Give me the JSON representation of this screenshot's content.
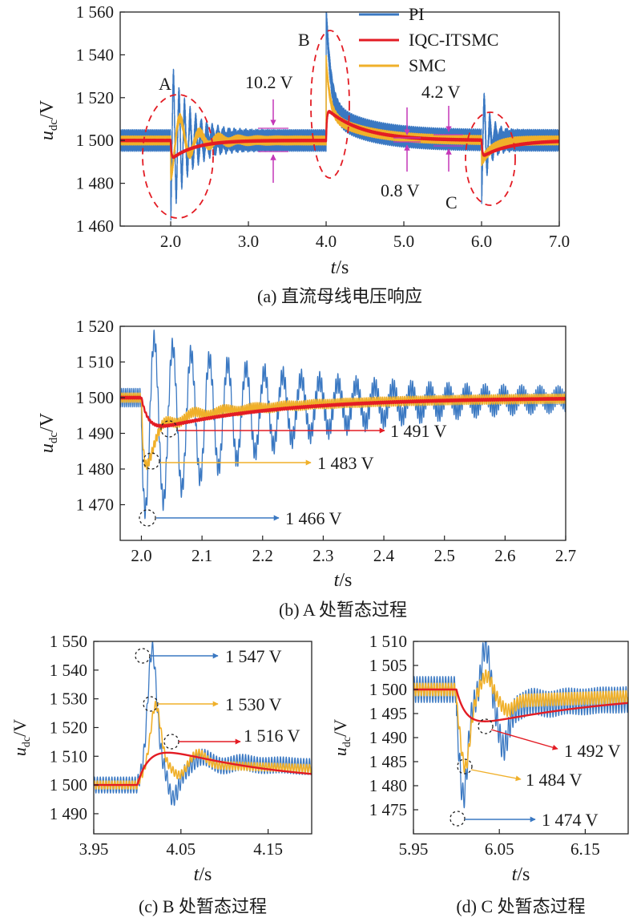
{
  "colors": {
    "PI": "#3a78c2",
    "IQC": "#e31c24",
    "SMC": "#f0b02a",
    "magenta": "#c437b8",
    "circle": "#b00000"
  },
  "chart_data": [
    {
      "id": "a",
      "type": "line",
      "caption": "(a) 直流母线电压响应",
      "xlabel_italic": "t",
      "xlabel_unit": "/s",
      "ylabel_italic": "u",
      "ylabel_sub": "dc",
      "ylabel_unit": "/V",
      "xlim": [
        1.35,
        7.0
      ],
      "ylim": [
        1460,
        1560
      ],
      "xticks": [
        2.0,
        3.0,
        4.0,
        5.0,
        6.0,
        7.0
      ],
      "xtick_labels": [
        "2.0",
        "3.0",
        "4.0",
        "5.0",
        "6.0",
        "7.0"
      ],
      "yticks": [
        1460,
        1480,
        1500,
        1520,
        1540,
        1560
      ],
      "ytick_labels": [
        "1 460",
        "1 480",
        "1 500",
        "1 520",
        "1 540",
        "1 560"
      ],
      "legend": [
        "PI",
        "IQC-ITSMC",
        "SMC"
      ],
      "annotations": {
        "A": "A",
        "B": "B",
        "C": "C",
        "pi_ripple": "10.2 V",
        "iqc_ripple": "0.8 V",
        "smc_ripple": "4.2 V"
      }
    },
    {
      "id": "b",
      "type": "line",
      "caption": "(b) A 处暂态过程",
      "xlabel_italic": "t",
      "xlabel_unit": "/s",
      "ylabel_italic": "u",
      "ylabel_sub": "dc",
      "ylabel_unit": "/V",
      "xlim": [
        1.965,
        2.7
      ],
      "ylim": [
        1460,
        1520
      ],
      "xticks": [
        2.0,
        2.1,
        2.2,
        2.3,
        2.4,
        2.5,
        2.6,
        2.7
      ],
      "xtick_labels": [
        "2.0",
        "2.1",
        "2.2",
        "2.3",
        "2.4",
        "2.5",
        "2.6",
        "2.7"
      ],
      "yticks": [
        1470,
        1480,
        1490,
        1500,
        1510,
        1520
      ],
      "ytick_labels": [
        "1 470",
        "1 480",
        "1 490",
        "1 500",
        "1 510",
        "1 520"
      ],
      "minima": {
        "PI": "1 466 V",
        "SMC": "1 483 V",
        "IQC": "1 491 V"
      }
    },
    {
      "id": "c",
      "type": "line",
      "caption": "(c) B 处暂态过程",
      "xlabel_italic": "t",
      "xlabel_unit": "/s",
      "ylabel_italic": "u",
      "ylabel_sub": "dc",
      "ylabel_unit": "/V",
      "xlim": [
        3.95,
        4.2
      ],
      "ylim": [
        1483,
        1550
      ],
      "xticks": [
        3.95,
        4.05,
        4.15
      ],
      "xtick_labels": [
        "3.95",
        "4.05",
        "4.15"
      ],
      "yticks": [
        1490,
        1500,
        1510,
        1520,
        1530,
        1540,
        1550
      ],
      "ytick_labels": [
        "1 490",
        "1 500",
        "1 510",
        "1 520",
        "1 530",
        "1 540",
        "1 550"
      ],
      "maxima": {
        "PI": "1 547 V",
        "SMC": "1 530 V",
        "IQC": "1 516 V"
      }
    },
    {
      "id": "d",
      "type": "line",
      "caption": "(d) C 处暂态过程",
      "xlabel_italic": "t",
      "xlabel_unit": "/s",
      "ylabel_italic": "u",
      "ylabel_sub": "dc",
      "ylabel_unit": "/V",
      "xlim": [
        5.95,
        6.2
      ],
      "ylim": [
        1470,
        1510
      ],
      "xticks": [
        5.95,
        6.05,
        6.15
      ],
      "xtick_labels": [
        "5.95",
        "6.05",
        "6.15"
      ],
      "yticks": [
        1475,
        1480,
        1485,
        1490,
        1495,
        1500,
        1505,
        1510
      ],
      "ytick_labels": [
        "1 475",
        "1 480",
        "1 485",
        "1 490",
        "1 495",
        "1 500",
        "1 505",
        "1 510"
      ],
      "minima": {
        "PI": "1 474 V",
        "SMC": "1 484 V",
        "IQC": "1 492 V"
      }
    }
  ]
}
